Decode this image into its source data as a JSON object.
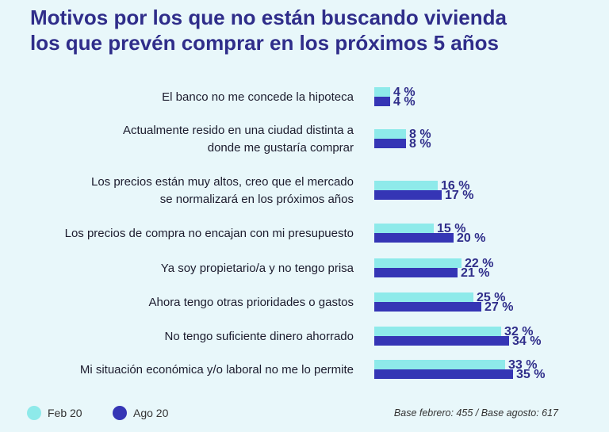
{
  "colors": {
    "feb": "#8eeaea",
    "ago": "#3535b5",
    "title": "#2f2d8a"
  },
  "chart_data": {
    "type": "bar",
    "orientation": "horizontal",
    "title_lines": [
      "Motivos por los que no están buscando vivienda",
      "los que prevén comprar en los próximos 5 años"
    ],
    "categories": [
      [
        "El banco no me concede la hipoteca"
      ],
      [
        "Actualmente resido en una ciudad distinta a",
        "donde me gustaría comprar"
      ],
      [
        "Los precios están muy altos, creo que el mercado",
        "se normalizará en los próximos años"
      ],
      [
        "Los precios de compra no encajan con mi presupuesto"
      ],
      [
        "Ya soy propietario/a y no tengo prisa"
      ],
      [
        "Ahora tengo otras prioridades o gastos"
      ],
      [
        "No tengo suficiente dinero ahorrado"
      ],
      [
        "Mi situación económica y/o laboral no me lo permite"
      ]
    ],
    "series": [
      {
        "name": "Feb 20",
        "values": [
          4,
          8,
          16,
          15,
          22,
          25,
          32,
          33
        ],
        "labels": [
          "4 %",
          "8 %",
          "16 %",
          "15 %",
          "22 %",
          "25 %",
          "32 %",
          "33 %"
        ]
      },
      {
        "name": "Ago 20",
        "values": [
          4,
          8,
          17,
          20,
          21,
          27,
          34,
          35
        ],
        "labels": [
          "4 %",
          "8 %",
          "17 %",
          "20 %",
          "21 %",
          "27 %",
          "34 %",
          "35 %"
        ]
      }
    ],
    "unit": "%",
    "xlim": [
      0,
      35
    ],
    "grid": false,
    "legend_position": "bottom-left"
  },
  "legend": {
    "feb": "Feb 20",
    "ago": "Ago 20"
  },
  "base_note": "Base febrero: 455 / Base agosto: 617"
}
